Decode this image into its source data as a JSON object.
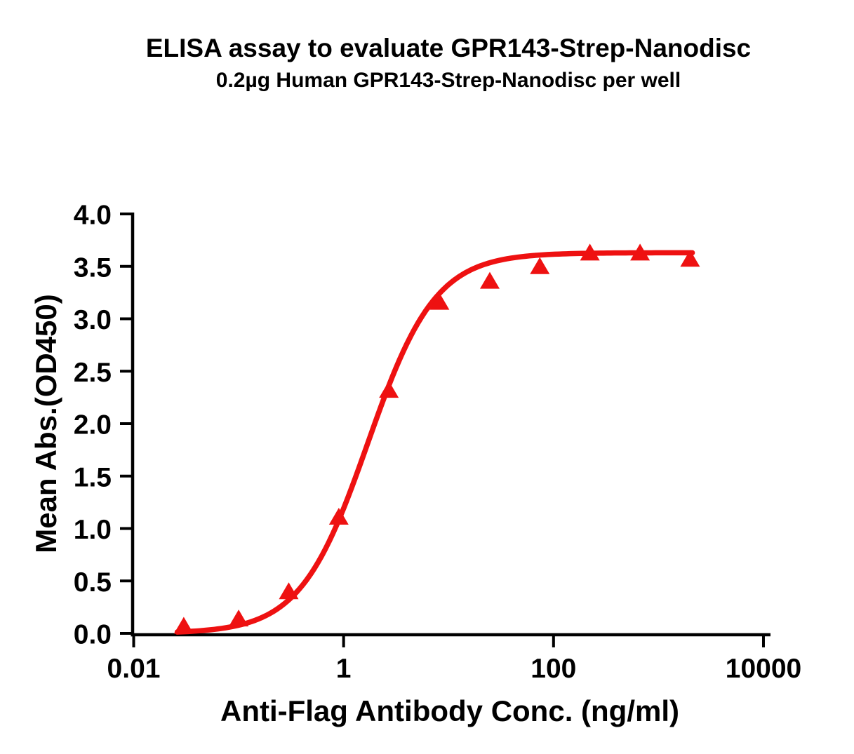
{
  "chart_data": {
    "type": "scatter",
    "title": "ELISA assay to evaluate GPR143-Strep-Nanodisc",
    "subtitle": "0.2µg Human GPR143-Strep-Nanodisc per well",
    "xlabel": "Anti-Flag Antibody Conc. (ng/ml)",
    "ylabel": "Mean Abs.(OD450)",
    "x_scale": "log",
    "xlim": [
      0.01,
      10000
    ],
    "ylim": [
      0.0,
      4.0
    ],
    "x_ticks": [
      0.01,
      1,
      100,
      10000
    ],
    "x_tick_labels": [
      "0.01",
      "1",
      "100",
      "10000"
    ],
    "y_ticks": [
      0.0,
      0.5,
      1.0,
      1.5,
      2.0,
      2.5,
      3.0,
      3.5,
      4.0
    ],
    "y_tick_labels": [
      "0.0",
      "0.5",
      "1.0",
      "1.5",
      "2.0",
      "2.5",
      "3.0",
      "3.5",
      "4.0"
    ],
    "grid": false,
    "legend": "none",
    "series": [
      {
        "name": "Human GPR143-Strep-Nanodisc",
        "marker": "triangle-up",
        "color": "#EE1111",
        "x": [
          0.03,
          0.1,
          0.3,
          0.9,
          2.7,
          8.2,
          24.7,
          74,
          222,
          667,
          2000
        ],
        "y": [
          0.07,
          0.14,
          0.4,
          1.11,
          2.32,
          3.16,
          3.36,
          3.5,
          3.63,
          3.63,
          3.57
        ]
      }
    ],
    "fit_curve": {
      "model": "4PL",
      "bottom": 0.0,
      "top": 3.63,
      "ec50": 1.7,
      "hill": 1.35,
      "x_start": 0.026,
      "x_end": 2100,
      "color": "#EE1111"
    },
    "colors": {
      "axis": "#000000",
      "text": "#000000",
      "background": "#FFFFFF",
      "accent_red": "#EE1111"
    }
  }
}
